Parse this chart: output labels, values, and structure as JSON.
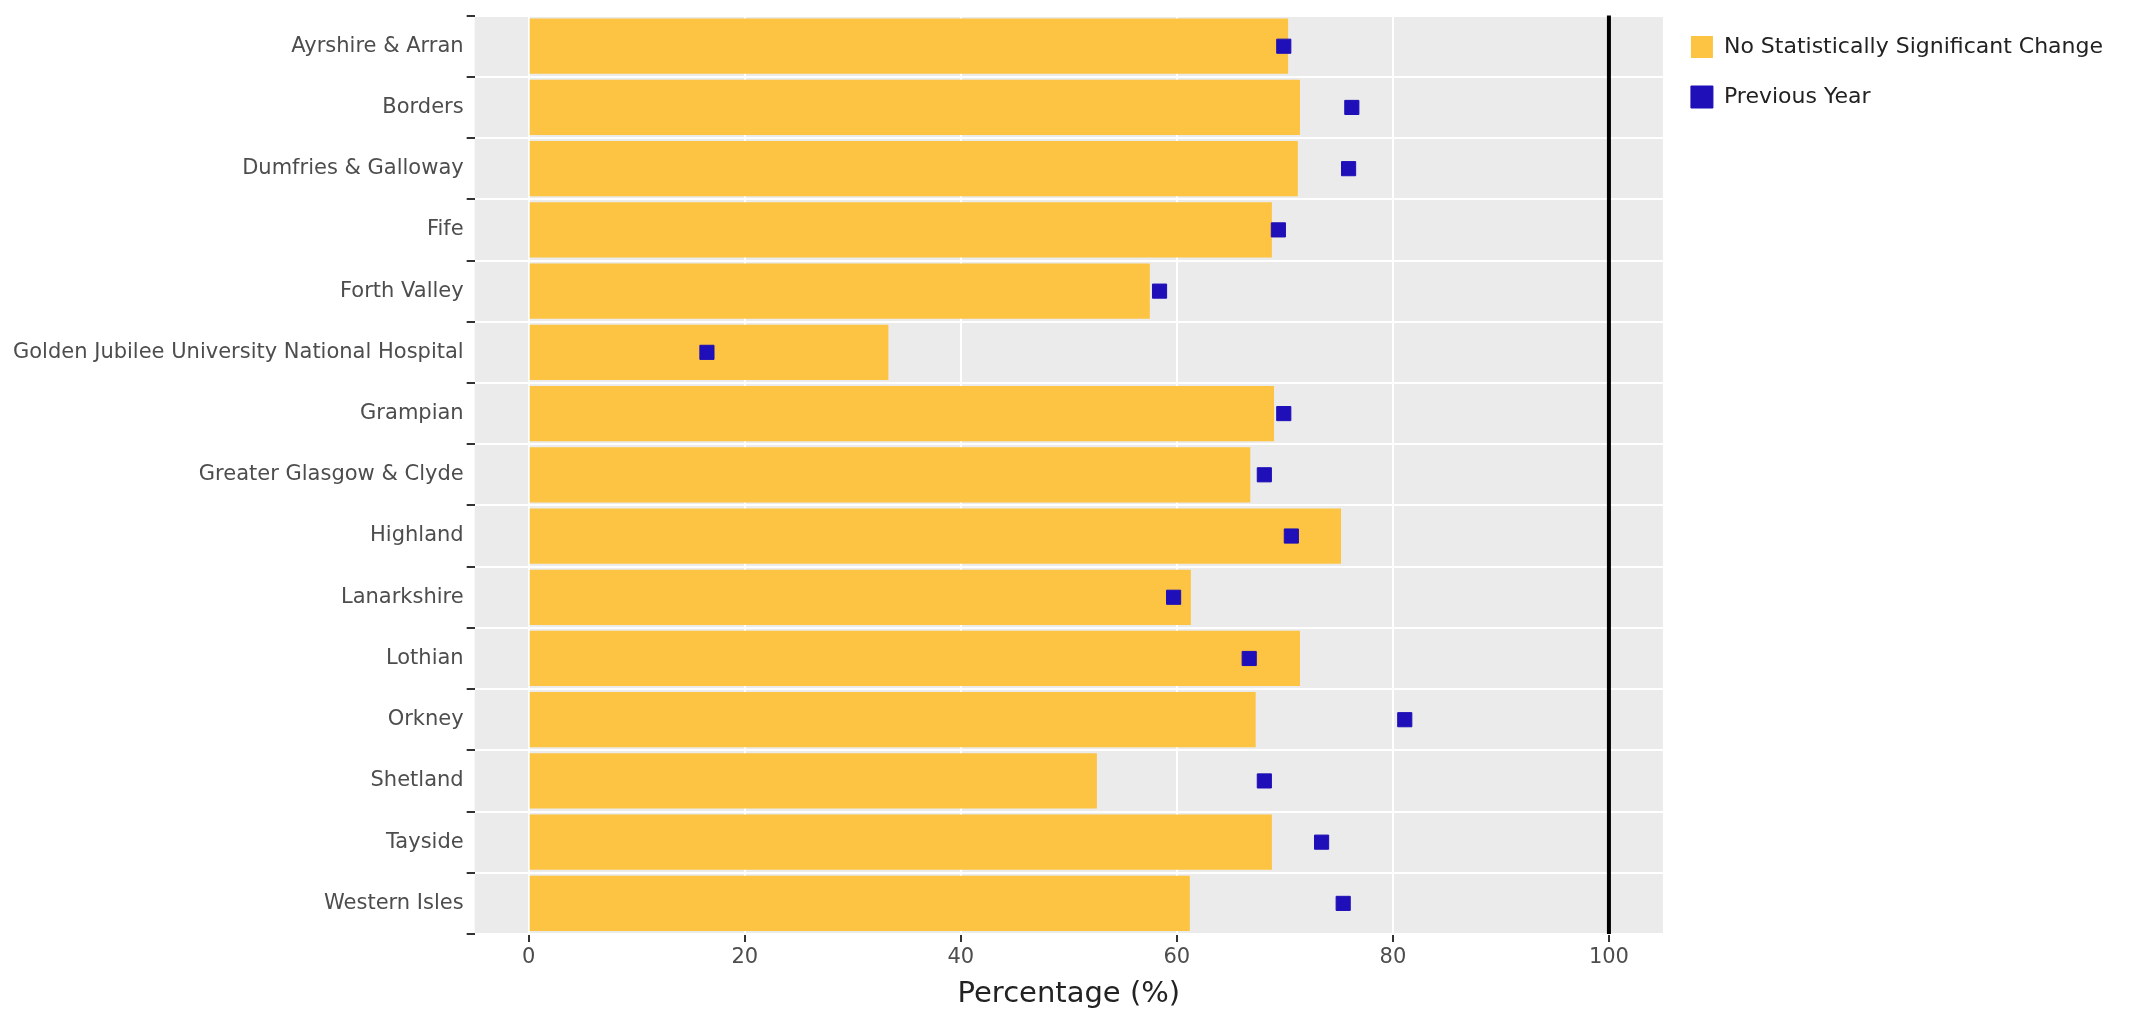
{
  "chart_data": {
    "type": "bar",
    "orientation": "horizontal",
    "xlabel": "Percentage (%)",
    "categories": [
      "Ayrshire & Arran",
      "Borders",
      "Dumfries & Galloway",
      "Fife",
      "Forth Valley",
      "Golden Jubilee University National Hospital",
      "Grampian",
      "Greater Glasgow & Clyde",
      "Highland",
      "Lanarkshire",
      "Lothian",
      "Orkney",
      "Shetland",
      "Tayside",
      "Western Isles"
    ],
    "series": [
      {
        "name": "No Statistically Significant Change",
        "color": "#fcc442",
        "values": [
          70.3,
          71.4,
          71.2,
          68.8,
          57.5,
          33.3,
          69.0,
          66.8,
          75.2,
          61.3,
          71.4,
          67.3,
          52.6,
          68.8,
          61.2
        ]
      },
      {
        "name": "Previous Year",
        "type": "scatter",
        "color": "#1f0fb8",
        "values": [
          69.9,
          76.2,
          75.9,
          69.4,
          58.4,
          16.5,
          69.9,
          68.1,
          70.6,
          59.7,
          66.7,
          81.1,
          68.1,
          73.4,
          75.4
        ]
      }
    ],
    "xlim": [
      -5,
      105
    ],
    "xticks": [
      0,
      20,
      40,
      60,
      80,
      100
    ],
    "ref_lines": [
      {
        "axis": "x",
        "value": 100,
        "color": "#000000"
      }
    ],
    "grid": true,
    "legend": "top right",
    "marker": "square"
  }
}
